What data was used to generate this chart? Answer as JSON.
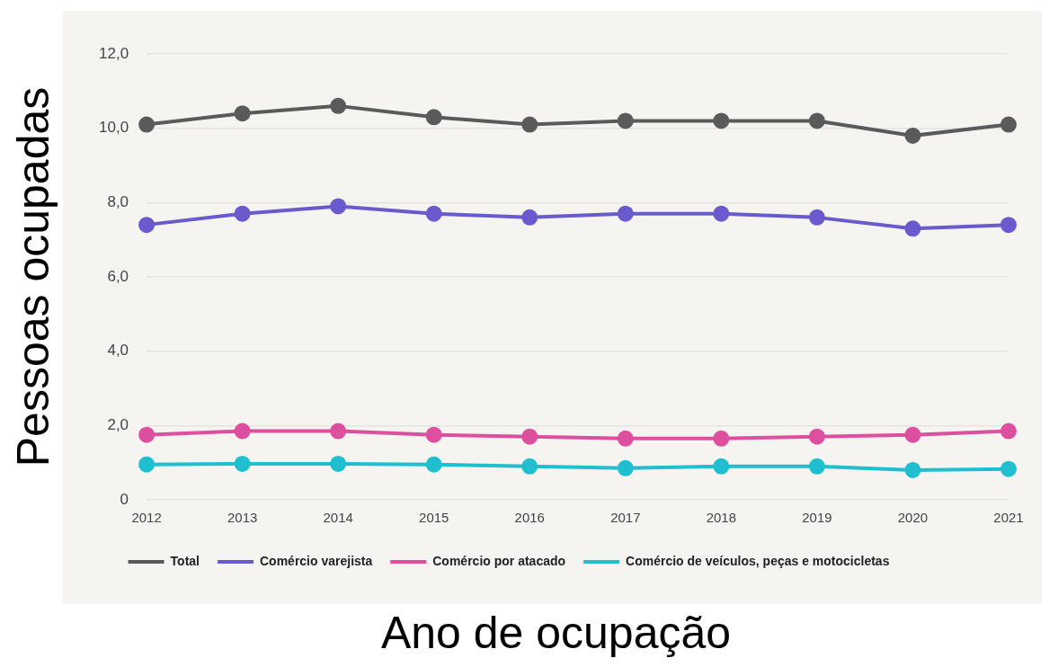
{
  "chart_data": {
    "type": "line",
    "xlabel": "Ano de ocupação",
    "ylabel": "Pessoas ocupadas",
    "categories": [
      "2012",
      "2013",
      "2014",
      "2015",
      "2016",
      "2017",
      "2018",
      "2019",
      "2020",
      "2021"
    ],
    "series": [
      {
        "name": "Total",
        "color": "#5a5a5a",
        "values": [
          10.1,
          10.4,
          10.6,
          10.3,
          10.1,
          10.2,
          10.2,
          10.2,
          9.8,
          10.1
        ]
      },
      {
        "name": "Comércio varejista",
        "color": "#6a5acd",
        "values": [
          7.4,
          7.7,
          7.9,
          7.7,
          7.6,
          7.7,
          7.7,
          7.6,
          7.3,
          7.4
        ]
      },
      {
        "name": "Comércio por atacado",
        "color": "#dd4f9f",
        "values": [
          1.75,
          1.85,
          1.85,
          1.75,
          1.7,
          1.65,
          1.65,
          1.7,
          1.75,
          1.85
        ]
      },
      {
        "name": "Comércio de veículos, peças e motocicletas",
        "color": "#1fbfcf",
        "values": [
          0.95,
          0.97,
          0.97,
          0.95,
          0.9,
          0.85,
          0.9,
          0.9,
          0.8,
          0.83
        ]
      }
    ],
    "ylim": [
      0,
      12
    ],
    "yticks": [
      {
        "value": 0,
        "label": "0"
      },
      {
        "value": 2,
        "label": "2,0"
      },
      {
        "value": 4,
        "label": "4,0"
      },
      {
        "value": 6,
        "label": "6,0"
      },
      {
        "value": 8,
        "label": "8,0"
      },
      {
        "value": 10,
        "label": "10,0"
      },
      {
        "value": 12,
        "label": "12,0"
      }
    ],
    "grid": "y",
    "legend": "bottom",
    "marker": "circle",
    "line_style": "solid"
  }
}
